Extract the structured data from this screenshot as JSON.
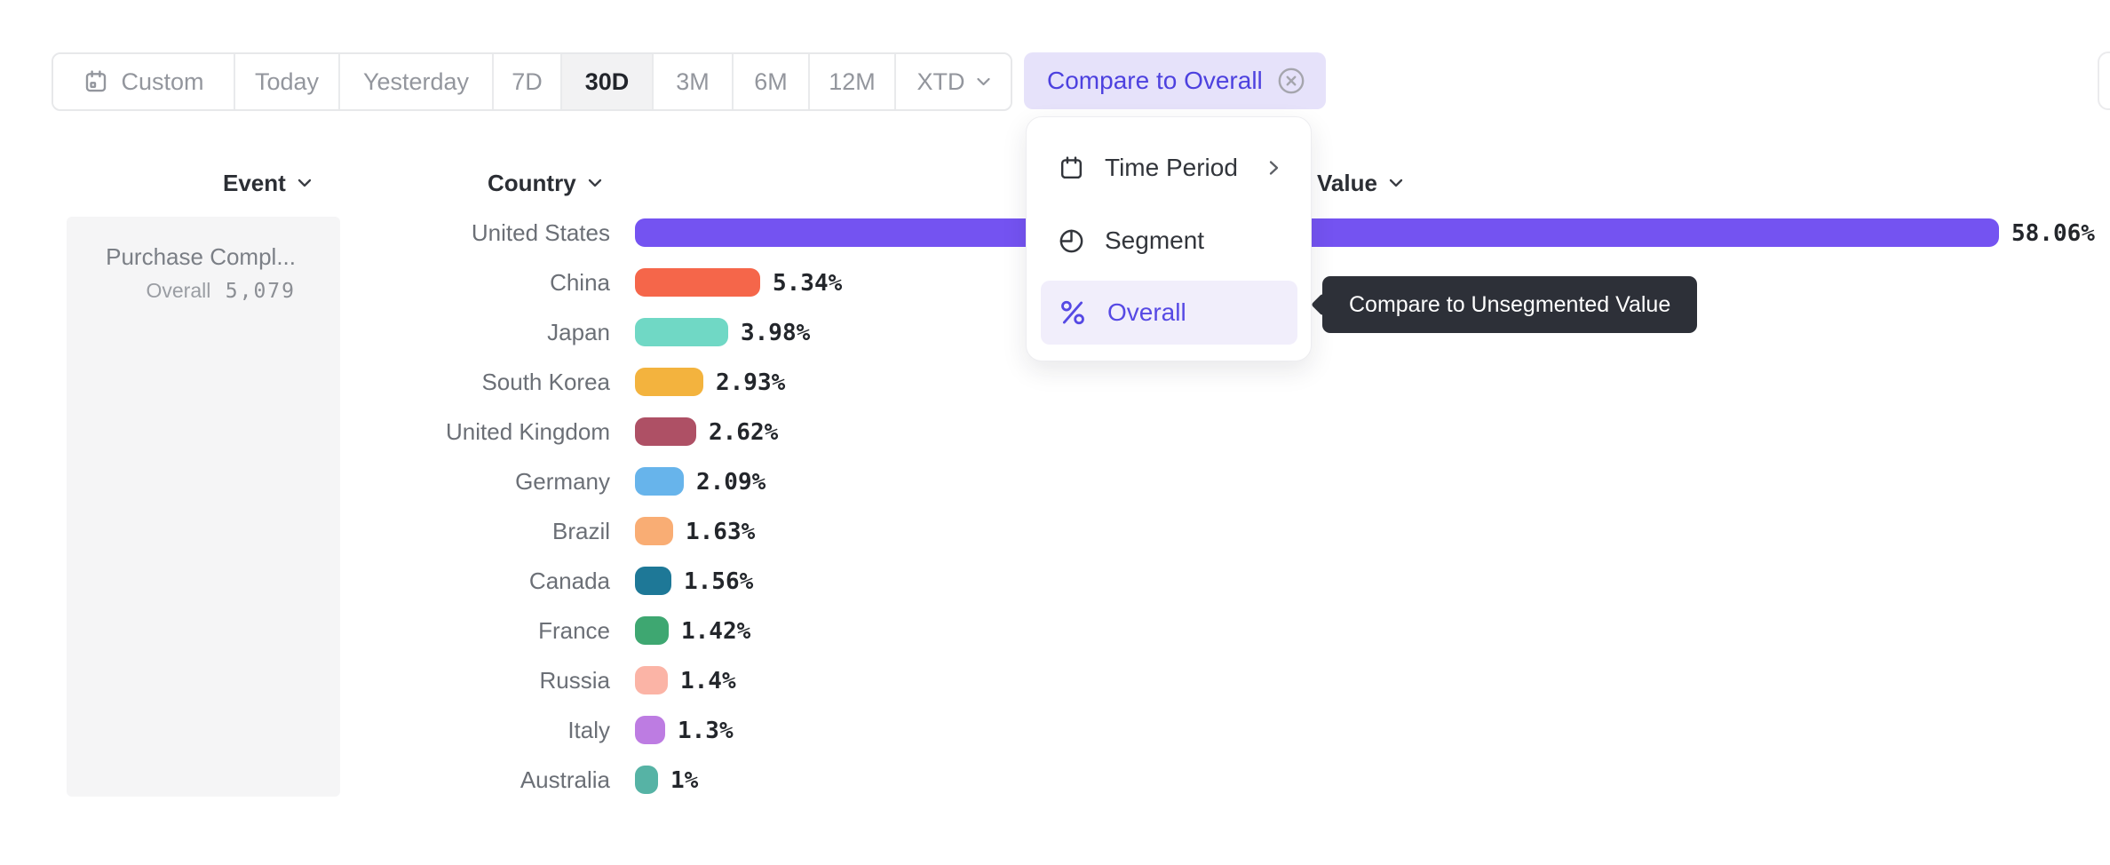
{
  "toolbar": {
    "items": [
      "Custom",
      "Today",
      "Yesterday",
      "7D",
      "30D",
      "3M",
      "6M",
      "12M",
      "XTD"
    ],
    "selected": "30D"
  },
  "compare_chip": {
    "label": "Compare to Overall"
  },
  "compare_menu": {
    "items": [
      {
        "label": "Time Period",
        "icon": "calendar-icon",
        "has_submenu": true,
        "highlighted": false
      },
      {
        "label": "Segment",
        "icon": "segment-icon",
        "has_submenu": false,
        "highlighted": false
      },
      {
        "label": "Overall",
        "icon": "percent-icon",
        "has_submenu": false,
        "highlighted": true
      }
    ]
  },
  "tooltip": {
    "text": "Compare to Unsegmented Value"
  },
  "column_headers": {
    "event": "Event",
    "country": "Country",
    "value": "Value"
  },
  "event_card": {
    "event_name": "Purchase Compl...",
    "overall_label": "Overall",
    "overall_value": "5,079"
  },
  "colors": {
    "accent_purple": "#5649e4",
    "chip_bg": "#e6e2fa",
    "menu_highlight_bg": "#f1eefb",
    "tooltip_bg": "#2d3038",
    "selected_preset_bg": "#f2f2f3"
  },
  "chart_data": {
    "type": "bar",
    "orientation": "horizontal",
    "title": "",
    "xlabel": "Value (%)",
    "ylabel": "Country",
    "xlim": [
      0,
      60
    ],
    "grid": false,
    "legend": false,
    "categories": [
      "United States",
      "China",
      "Japan",
      "South Korea",
      "United Kingdom",
      "Germany",
      "Brazil",
      "Canada",
      "France",
      "Russia",
      "Italy",
      "Australia"
    ],
    "values": [
      58.06,
      5.34,
      3.98,
      2.93,
      2.62,
      2.09,
      1.63,
      1.56,
      1.42,
      1.4,
      1.3,
      1
    ],
    "value_labels": [
      "58.06%",
      "5.34%",
      "3.98%",
      "2.93%",
      "2.62%",
      "2.09%",
      "1.63%",
      "1.56%",
      "1.42%",
      "1.4%",
      "1.3%",
      "1%"
    ],
    "bar_colors": [
      "#7453f1",
      "#f5664a",
      "#70d8c5",
      "#f3b33e",
      "#ae5065",
      "#67b4eb",
      "#f9ad74",
      "#1e7897",
      "#3ea771",
      "#fbb4a6",
      "#bd7ce2",
      "#56b3a5"
    ]
  }
}
